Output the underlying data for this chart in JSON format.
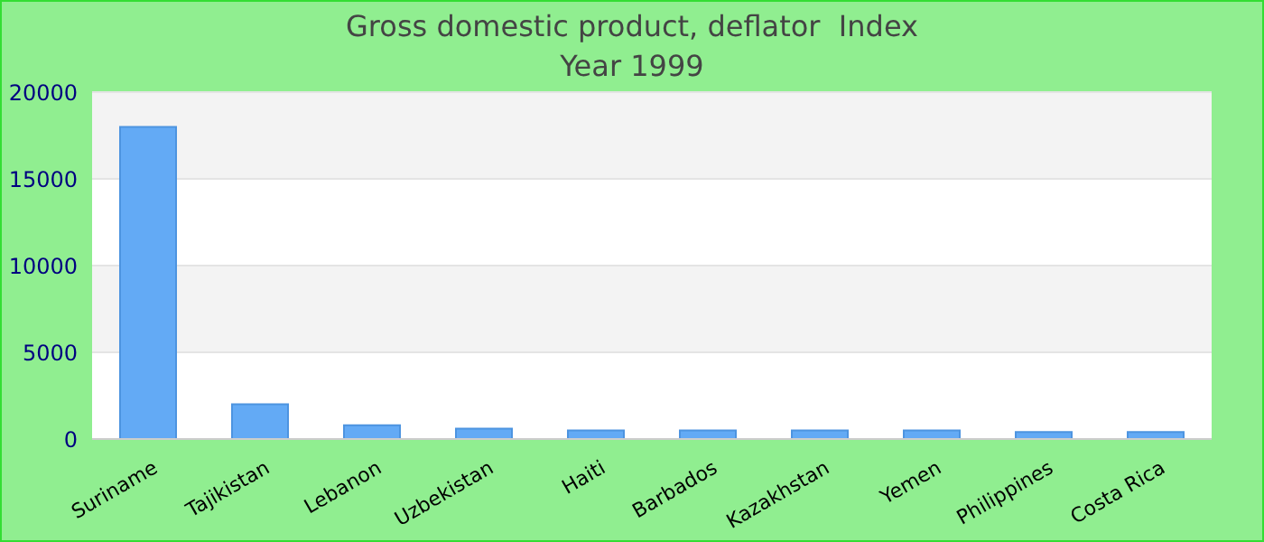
{
  "chart_data": {
    "type": "bar",
    "title": "Gross domestic product, deflator  Index",
    "subtitle": "Year 1999",
    "categories": [
      "Suriname",
      "Tajikistan",
      "Lebanon",
      "Uzbekistan",
      "Haiti",
      "Barbados",
      "Kazakhstan",
      "Yemen",
      "Philippines",
      "Costa Rica"
    ],
    "values": [
      18000,
      2000,
      800,
      600,
      500,
      500,
      500,
      500,
      400,
      400
    ],
    "color": "#63aaf5",
    "ylim": [
      0,
      20000
    ],
    "yticks": [
      0,
      5000,
      10000,
      15000,
      20000
    ],
    "grid": "y"
  }
}
